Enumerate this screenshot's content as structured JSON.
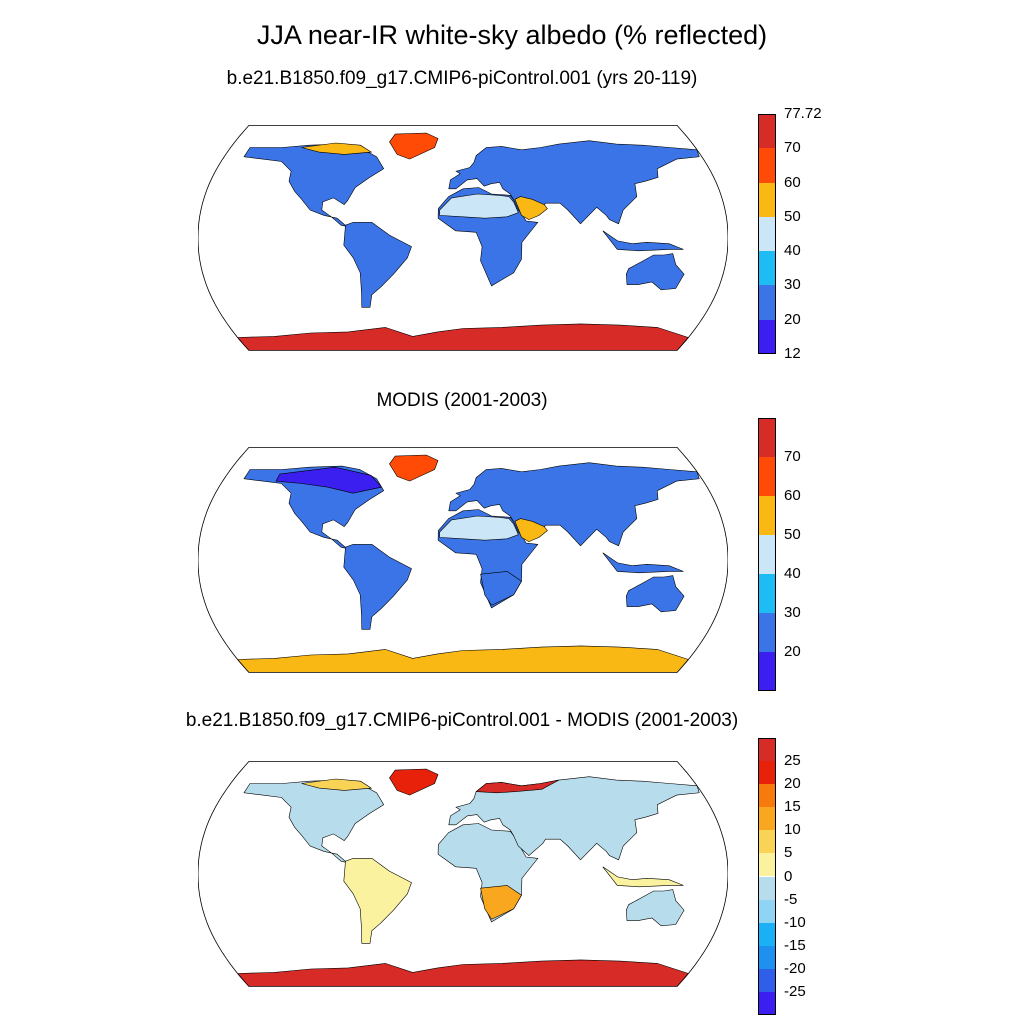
{
  "title": "JJA near-IR white-sky albedo (% reflected)",
  "panels": [
    {
      "title": "b.e21.B1850.f09_g17.CMIP6-piControl.001 (yrs 20-119)",
      "colorbar": {
        "colors": [
          "#3b1ef0",
          "#3a74e6",
          "#1ebcf5",
          "#cbe6f7",
          "#fab814",
          "#ff4b05",
          "#d62b26"
        ],
        "labels": [
          "12",
          "20",
          "30",
          "40",
          "50",
          "60",
          "70",
          "77.72"
        ],
        "label_mode": "edges"
      }
    },
    {
      "title": "MODIS (2001-2003)",
      "colorbar": {
        "colors": [
          "#3b1ef0",
          "#3a74e6",
          "#1ebcf5",
          "#cbe6f7",
          "#fab814",
          "#ff4b05",
          "#d62b26"
        ],
        "labels": [
          "20",
          "30",
          "40",
          "50",
          "60",
          "70"
        ],
        "label_mode": "inner"
      }
    },
    {
      "title": "b.e21.B1850.f09_g17.CMIP6-piControl.001 - MODIS (2001-2003)",
      "colorbar": {
        "colors": [
          "#3b1ef0",
          "#2f5ee8",
          "#1e90f0",
          "#1ab0f5",
          "#8fd3f5",
          "#b7dcec",
          "#fbf2a0",
          "#f9d356",
          "#f9a71e",
          "#f77a0d",
          "#e8210a",
          "#d62b26"
        ],
        "labels": [
          "-25",
          "-20",
          "-15",
          "-10",
          "-5",
          "0",
          "5",
          "10",
          "15",
          "20",
          "25"
        ],
        "label_mode": "inner"
      }
    }
  ],
  "map_fill": {
    "panel1": {
      "land": "#3a74e6",
      "desert": "#cbe6f7",
      "desert_hot": "#fab814",
      "greenland": "#ff4b05",
      "antarctica": "#d62b26",
      "arctic": "#fab814"
    },
    "panel2": {
      "land": "#3a74e6",
      "boreal": "#3b1ef0",
      "desert": "#cbe6f7",
      "desert_hot": "#fab814",
      "greenland": "#ff4b05",
      "antarctica": "#fab814",
      "antarctica_edge": "#cbe6f7"
    },
    "panel3": {
      "land": "#b7dcec",
      "warm": "#fbf2a0",
      "warm2": "#f9d356",
      "hot": "#f9a71e",
      "greenland": "#e8210a",
      "antarctica": "#d62b26",
      "arctic": "#d62b26"
    }
  }
}
